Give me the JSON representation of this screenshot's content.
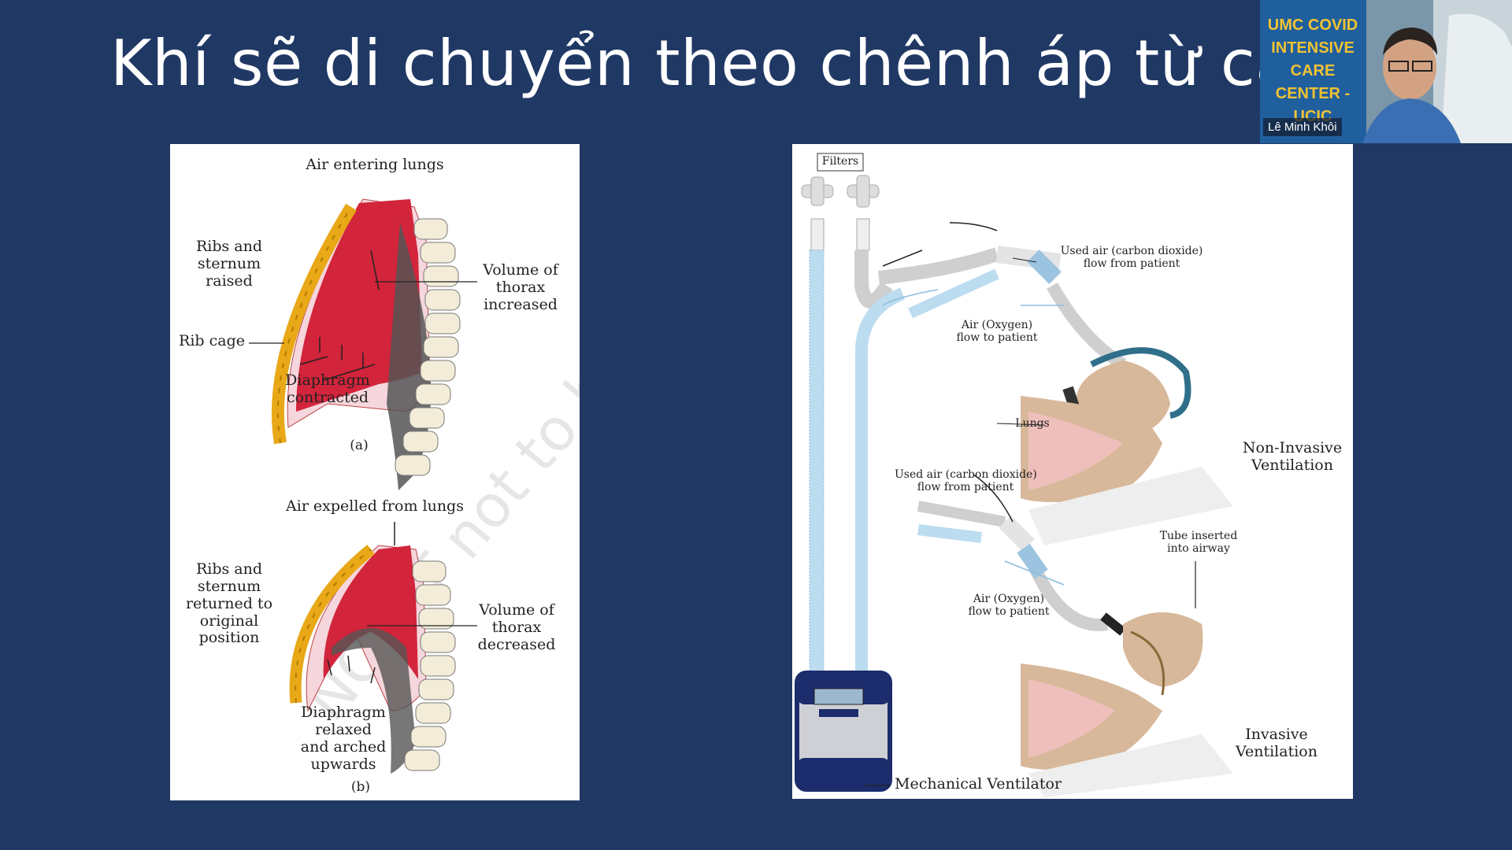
{
  "slide": {
    "title": "Khí sẽ di chuyển theo chênh áp từ cao đến",
    "background_color": "#203864"
  },
  "left_figure": {
    "a": {
      "top_label": "Air entering lungs",
      "ribs_label": [
        "Ribs and",
        "sternum",
        "raised"
      ],
      "volume_label": [
        "Volume of",
        "thorax",
        "increased"
      ],
      "ribcage_label": "Rib cage",
      "diaphragm_label": [
        "Diaphragm",
        "contracted"
      ],
      "caption": "(a)"
    },
    "b": {
      "top_label": "Air expelled from lungs",
      "ribs_label": [
        "Ribs and",
        "sternum",
        "returned to",
        "original",
        "position"
      ],
      "volume_label": [
        "Volume of",
        "thorax",
        "decreased"
      ],
      "diaphragm_label": [
        "Diaphragm",
        "relaxed",
        "and arched",
        "upwards"
      ],
      "caption": "(b)"
    },
    "watermark": "NCERT not to be republished"
  },
  "right_figure": {
    "filters": "Filters",
    "used_air_top": [
      "Used air (carbon dioxide)",
      "flow from patient"
    ],
    "air_oxygen_top": [
      "Air (Oxygen)",
      "flow to patient"
    ],
    "lungs": "Lungs",
    "non_invasive": [
      "Non-Invasive",
      "Ventilation"
    ],
    "used_air_bottom": [
      "Used air (carbon dioxide)",
      "flow from patient"
    ],
    "tube": [
      "Tube inserted",
      "into airway"
    ],
    "air_oxygen_bottom": [
      "Air (Oxygen)",
      "flow to patient"
    ],
    "invasive": [
      "Invasive",
      "Ventilation"
    ],
    "ventilator": "Mechanical Ventilator"
  },
  "webcam": {
    "name": "Lê Minh Khôi",
    "banner": [
      "UMC COVID",
      "INTENSIVE",
      "CARE",
      "CENTER - UCIC"
    ]
  }
}
